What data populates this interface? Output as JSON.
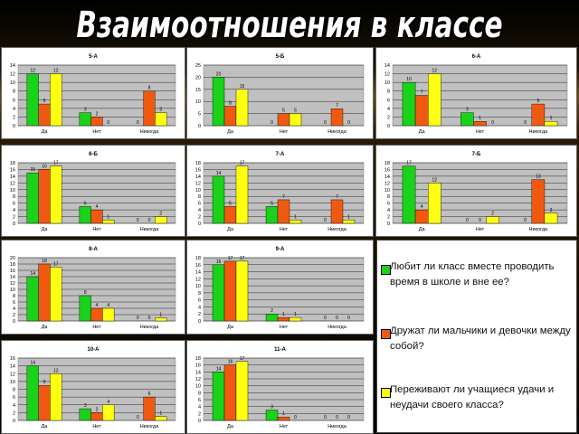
{
  "title": "Взаимоотношения в классе",
  "colors": {
    "green": "#19d219",
    "orange": "#f05a10",
    "yellow": "#ffff10",
    "plot_bg": "#c0c0c0"
  },
  "legend": [
    {
      "text": "Любит ли класс вместе проводить время в школе и вне ее?",
      "color": "#19d219"
    },
    {
      "text": "Дружат ли мальчики и девочки между собой?",
      "color": "#f05a10"
    },
    {
      "text": "Переживают ли учащиеся удачи и неудачи своего класса?",
      "color": "#ffff10"
    }
  ],
  "chart_data": [
    {
      "type": "bar",
      "title": "5-А",
      "categories": [
        "Да",
        "Нет",
        "Никогда"
      ],
      "ylim": [
        0,
        14
      ],
      "yticks": [
        0,
        2,
        4,
        6,
        8,
        10,
        12,
        14
      ],
      "series": [
        {
          "values": [
            12,
            3,
            0
          ]
        },
        {
          "values": [
            5,
            2,
            8
          ]
        },
        {
          "values": [
            12,
            0,
            3
          ]
        }
      ]
    },
    {
      "type": "bar",
      "title": "5-Б",
      "categories": [
        "Да",
        "Нет",
        "Никогда"
      ],
      "ylim": [
        0,
        25
      ],
      "yticks": [
        0,
        5,
        10,
        15,
        20,
        25
      ],
      "series": [
        {
          "values": [
            20,
            0,
            0
          ]
        },
        {
          "values": [
            8,
            5,
            7
          ]
        },
        {
          "values": [
            15,
            5,
            0
          ]
        }
      ]
    },
    {
      "type": "bar",
      "title": "6-А",
      "categories": [
        "Да",
        "Нет",
        "Никогда"
      ],
      "ylim": [
        0,
        14
      ],
      "yticks": [
        0,
        2,
        4,
        6,
        8,
        10,
        12,
        14
      ],
      "series": [
        {
          "values": [
            10,
            3,
            0
          ]
        },
        {
          "values": [
            7,
            1,
            5
          ]
        },
        {
          "values": [
            12,
            0,
            1
          ]
        }
      ]
    },
    {
      "type": "bar",
      "title": "6-Б",
      "categories": [
        "Да",
        "Нет",
        "Никогда"
      ],
      "ylim": [
        0,
        18
      ],
      "yticks": [
        0,
        2,
        4,
        6,
        8,
        10,
        12,
        14,
        16,
        18
      ],
      "series": [
        {
          "values": [
            15,
            5,
            0
          ]
        },
        {
          "values": [
            16,
            4,
            0
          ]
        },
        {
          "values": [
            17,
            1,
            2
          ]
        }
      ]
    },
    {
      "type": "bar",
      "title": "7-А",
      "categories": [
        "Да",
        "Нет",
        "Никогда"
      ],
      "ylim": [
        0,
        18
      ],
      "yticks": [
        0,
        2,
        4,
        6,
        8,
        10,
        12,
        14,
        16,
        18
      ],
      "series": [
        {
          "values": [
            14,
            5,
            0
          ]
        },
        {
          "values": [
            5,
            7,
            7
          ]
        },
        {
          "values": [
            17,
            1,
            1
          ]
        }
      ]
    },
    {
      "type": "bar",
      "title": "7-Б",
      "categories": [
        "Да",
        "Нет",
        "Никогда"
      ],
      "ylim": [
        0,
        18
      ],
      "yticks": [
        0,
        2,
        4,
        6,
        8,
        10,
        12,
        14,
        16,
        18
      ],
      "series": [
        {
          "values": [
            17,
            0,
            0
          ]
        },
        {
          "values": [
            4,
            0,
            13
          ]
        },
        {
          "values": [
            12,
            2,
            3
          ]
        }
      ]
    },
    {
      "type": "bar",
      "title": "8-А",
      "categories": [
        "Да",
        "Нет",
        "Никогда"
      ],
      "ylim": [
        0,
        20
      ],
      "yticks": [
        0,
        2,
        4,
        6,
        8,
        10,
        12,
        14,
        16,
        18,
        20
      ],
      "series": [
        {
          "values": [
            14,
            8,
            0
          ]
        },
        {
          "values": [
            18,
            4,
            0
          ]
        },
        {
          "values": [
            17,
            4,
            1
          ]
        }
      ]
    },
    {
      "type": "bar",
      "title": "9-А",
      "categories": [
        "Да",
        "Нет",
        "Никогда"
      ],
      "ylim": [
        0,
        18
      ],
      "yticks": [
        0,
        2,
        4,
        6,
        8,
        10,
        12,
        14,
        16,
        18
      ],
      "series": [
        {
          "values": [
            16,
            2,
            0
          ]
        },
        {
          "values": [
            17,
            1,
            0
          ]
        },
        {
          "values": [
            17,
            1,
            0
          ]
        }
      ]
    },
    {
      "type": "bar",
      "title": "10-А",
      "categories": [
        "Да",
        "Нет",
        "Никогда"
      ],
      "ylim": [
        0,
        16
      ],
      "yticks": [
        0,
        2,
        4,
        6,
        8,
        10,
        12,
        14,
        16
      ],
      "series": [
        {
          "values": [
            14,
            3,
            0
          ]
        },
        {
          "values": [
            9,
            2,
            6
          ]
        },
        {
          "values": [
            12,
            4,
            1
          ]
        }
      ]
    },
    {
      "type": "bar",
      "title": "11-А",
      "categories": [
        "Да",
        "Нет",
        "Никогда"
      ],
      "ylim": [
        0,
        18
      ],
      "yticks": [
        0,
        2,
        4,
        6,
        8,
        10,
        12,
        14,
        16,
        18
      ],
      "series": [
        {
          "values": [
            14,
            3,
            0
          ]
        },
        {
          "values": [
            16,
            1,
            0
          ]
        },
        {
          "values": [
            17,
            0,
            0
          ]
        }
      ]
    }
  ]
}
